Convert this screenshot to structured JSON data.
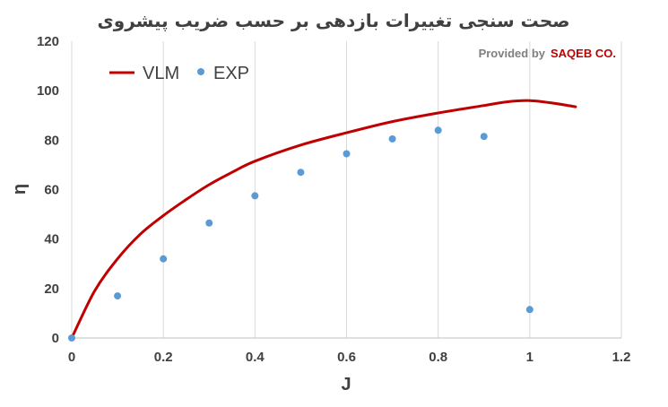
{
  "chart_data": {
    "type": "scatter",
    "title": "صحت سنجی تغییرات بازدهی بر حسب ضریب پیشروی",
    "xlabel": "J",
    "ylabel": "η",
    "xlim": [
      0,
      1.2
    ],
    "ylim": [
      0,
      120
    ],
    "x_ticks": [
      "0",
      "0.2",
      "0.4",
      "0.6",
      "0.8",
      "1",
      "1.2"
    ],
    "y_ticks": [
      "0",
      "20",
      "40",
      "60",
      "80",
      "100",
      "120"
    ],
    "grid": "vertical",
    "legend_position": "top-left",
    "credit_prefix": "Provided by",
    "credit_brand": "SAQEB CO.",
    "series": [
      {
        "name": "VLM",
        "style": "line",
        "color": "#c00000",
        "x": [
          0,
          0.05,
          0.1,
          0.15,
          0.2,
          0.25,
          0.3,
          0.35,
          0.4,
          0.5,
          0.6,
          0.7,
          0.8,
          0.9,
          0.95,
          1.0,
          1.05,
          1.1
        ],
        "y": [
          0,
          19,
          32,
          42,
          49.5,
          56,
          62,
          67,
          71.5,
          78,
          83,
          87.5,
          91,
          94,
          95.5,
          96,
          95,
          93.5
        ]
      },
      {
        "name": "EXP",
        "style": "markers",
        "color": "#5b9bd5",
        "x": [
          0,
          0.1,
          0.2,
          0.3,
          0.4,
          0.5,
          0.6,
          0.7,
          0.8,
          0.9,
          1.0
        ],
        "y": [
          0,
          17,
          32,
          46.5,
          57.5,
          67,
          74.5,
          80.5,
          84,
          81.5,
          11.5
        ]
      }
    ]
  }
}
